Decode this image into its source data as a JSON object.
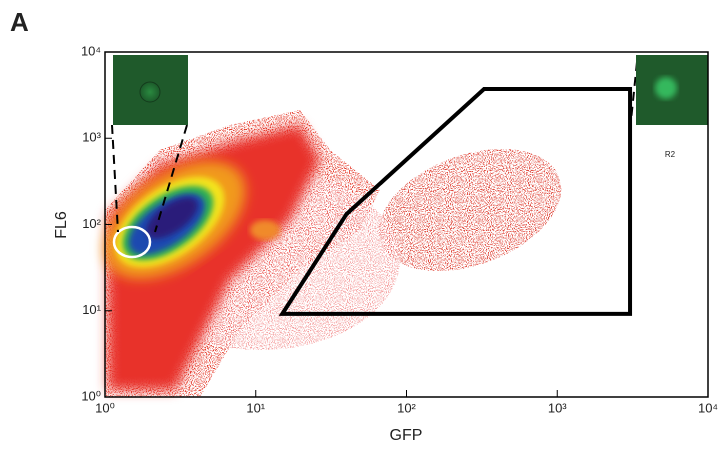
{
  "chart_data": {
    "type": "density-scatter",
    "panel_label": "A",
    "x_label": "GFP",
    "y_label": "FL6",
    "xscale": "log",
    "yscale": "log",
    "xlim": [
      1,
      10000
    ],
    "ylim": [
      1,
      10000
    ],
    "xticks": [
      {
        "value": 1,
        "label": "10⁰"
      },
      {
        "value": 10,
        "label": "10¹"
      },
      {
        "value": 100,
        "label": "10²"
      },
      {
        "value": 1000,
        "label": "10³"
      },
      {
        "value": 10000,
        "label": "10⁴"
      }
    ],
    "yticks": [
      {
        "value": 1,
        "label": "10⁰"
      },
      {
        "value": 10,
        "label": "10¹"
      },
      {
        "value": 100,
        "label": "10²"
      },
      {
        "value": 1000,
        "label": "10³"
      },
      {
        "value": 10000,
        "label": "10⁴"
      }
    ],
    "gate": {
      "label": "R2",
      "color": "#000000",
      "x": [
        15,
        40,
        327,
        3040,
        3040
      ],
      "y": [
        9.2,
        132,
        3720,
        3720,
        9.2
      ]
    }
  }
}
